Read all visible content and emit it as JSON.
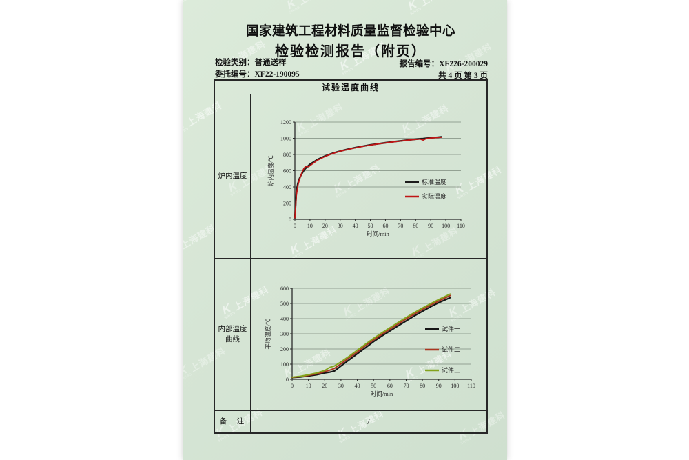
{
  "header": {
    "title": "国家建筑工程材料质量监督检验中心",
    "subtitle": "检验检测报告（附页）",
    "meta": {
      "category_label": "检验类别：",
      "category_value": "普通送样",
      "commission_label": "委托编号：",
      "commission_value": "XF22-190095",
      "report_no_label": "报告编号：",
      "report_no_value": "XF226-200029",
      "pagination": "共 4 页 第 3 页"
    }
  },
  "table": {
    "header": "试验温度曲线",
    "row1_label": "炉内温度",
    "row2_label": "内部温度曲线",
    "remarks_label": "备 注",
    "remarks_value": "/"
  },
  "watermark": {
    "text": "上海建科",
    "subtext": "SRIBS"
  },
  "colors": {
    "page_green": "#d6e5d5",
    "standard_curve": "#1c1c1c",
    "actual_curve": "#c01616",
    "specimen1": "#161616",
    "specimen2": "#ab3520",
    "specimen3": "#84a31d",
    "gridline": "#93a193"
  },
  "chart_data": [
    {
      "type": "line",
      "title": "",
      "xlabel": "时间/min",
      "ylabel": "炉内温度/℃",
      "xlim": [
        0,
        110
      ],
      "ylim": [
        0,
        1200
      ],
      "xticks": [
        0,
        10,
        20,
        30,
        40,
        50,
        60,
        70,
        80,
        90,
        100,
        110
      ],
      "yticks": [
        0,
        200,
        400,
        600,
        800,
        1000,
        1200
      ],
      "grid": true,
      "legend_position": "right-middle",
      "x": [
        0,
        1,
        2,
        3,
        4,
        5,
        6,
        7,
        8,
        9,
        10,
        15,
        20,
        25,
        30,
        35,
        40,
        45,
        50,
        55,
        60,
        65,
        70,
        75,
        80,
        83,
        85,
        87,
        90,
        95,
        97
      ],
      "series": [
        {
          "name": "标准温度",
          "color": "#1c1c1c",
          "values": [
            20,
            349,
            445,
            502,
            544,
            576,
            603,
            626,
            645,
            663,
            678,
            739,
            781,
            815,
            842,
            865,
            885,
            902,
            918,
            932,
            945,
            957,
            968,
            979,
            988,
            994,
            997,
            1001,
            1006,
            1013,
            1017
          ]
        },
        {
          "name": "实际温度",
          "color": "#c01616",
          "values": [
            20,
            300,
            420,
            490,
            545,
            592,
            628,
            650,
            655,
            648,
            662,
            730,
            776,
            812,
            840,
            862,
            882,
            900,
            916,
            930,
            943,
            955,
            966,
            977,
            986,
            991,
            977,
            997,
            1003,
            1010,
            1013
          ]
        }
      ]
    },
    {
      "type": "line",
      "title": "",
      "xlabel": "时间/min",
      "ylabel": "平均温度/℃",
      "xlim": [
        0,
        110
      ],
      "ylim": [
        0,
        600
      ],
      "xticks": [
        0,
        10,
        20,
        30,
        40,
        50,
        60,
        70,
        80,
        90,
        100,
        110
      ],
      "yticks": [
        0,
        100,
        200,
        300,
        400,
        500,
        600
      ],
      "grid": true,
      "legend_position": "right-middle",
      "x": [
        0,
        5,
        10,
        15,
        20,
        23,
        26,
        30,
        35,
        40,
        45,
        50,
        55,
        60,
        65,
        70,
        75,
        80,
        85,
        90,
        95,
        97
      ],
      "series": [
        {
          "name": "试件一",
          "color": "#161616",
          "values": [
            12,
            15,
            22,
            30,
            42,
            47,
            55,
            88,
            128,
            168,
            208,
            248,
            285,
            318,
            352,
            385,
            418,
            448,
            478,
            505,
            528,
            538
          ]
        },
        {
          "name": "试件二",
          "color": "#ab3520",
          "values": [
            13,
            18,
            26,
            36,
            50,
            60,
            72,
            102,
            142,
            180,
            222,
            260,
            296,
            330,
            364,
            398,
            430,
            460,
            490,
            516,
            542,
            552
          ]
        },
        {
          "name": "试件三",
          "color": "#84a31d",
          "values": [
            14,
            20,
            30,
            42,
            58,
            78,
            88,
            115,
            152,
            192,
            232,
            270,
            306,
            340,
            374,
            408,
            440,
            470,
            498,
            526,
            552,
            562
          ]
        }
      ]
    }
  ]
}
